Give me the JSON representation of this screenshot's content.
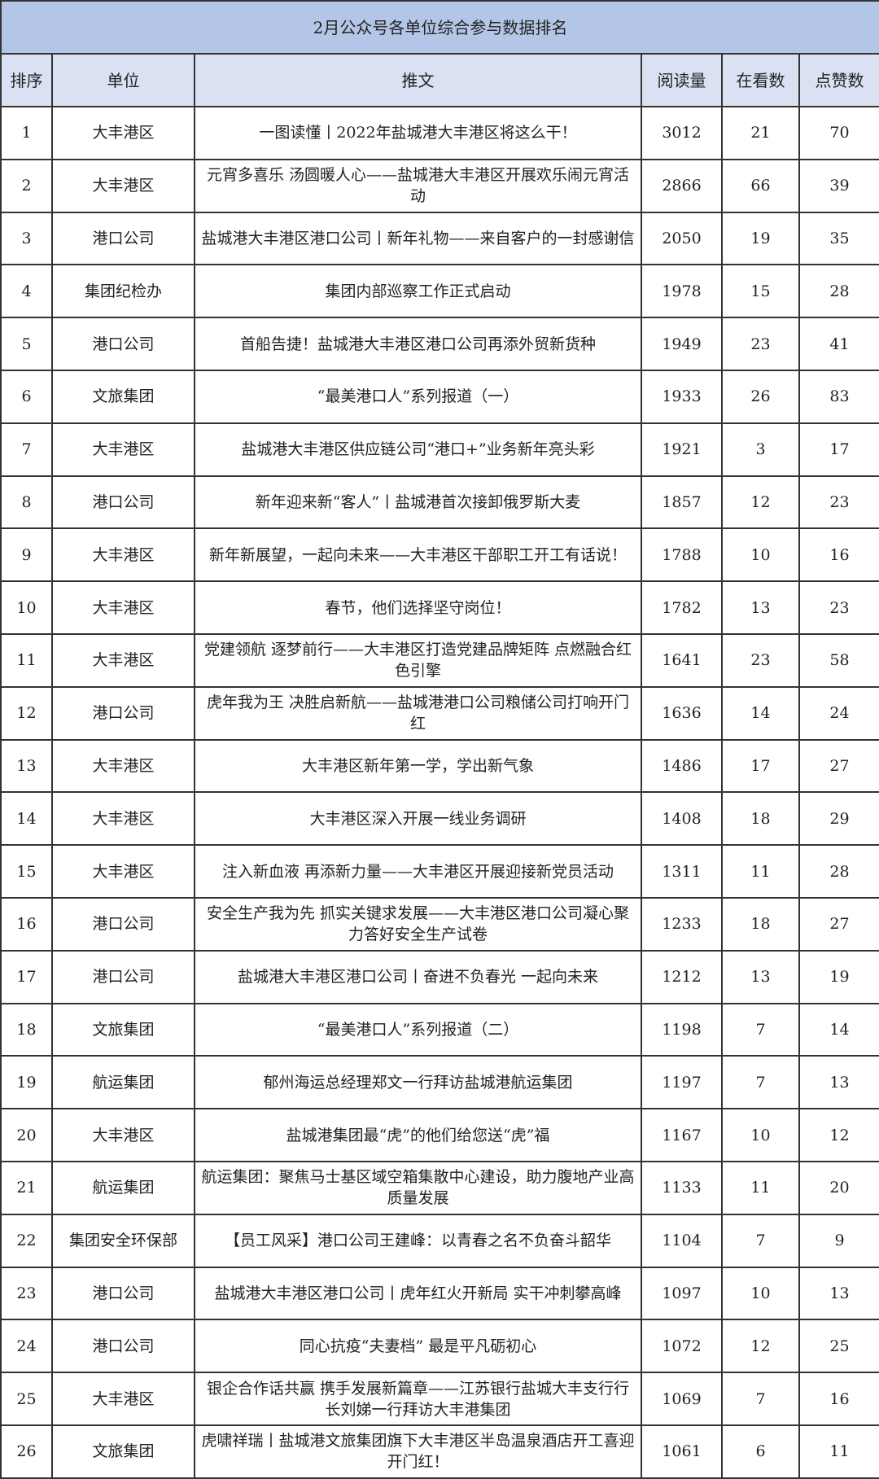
{
  "title": "2月公众号各单位综合参与数据排名",
  "headers": [
    "排序",
    "单位",
    "推文",
    "阅读量",
    "在看数",
    "点赞数"
  ],
  "colors": {
    "title_bg": "#b4c6e7",
    "header_bg": "#d9e1f2"
  },
  "rows": [
    [
      "1",
      "大丰港区",
      "一图读懂丨2022年盐城港大丰港区将这么干！",
      "3012",
      "21",
      "70"
    ],
    [
      "2",
      "大丰港区",
      "元宵多喜乐 汤圆暖人心——盐城港大丰港区开展欢乐闹元宵活动",
      "2866",
      "66",
      "39"
    ],
    [
      "3",
      "港口公司",
      "盐城港大丰港区港口公司丨新年礼物——来自客户的一封感谢信",
      "2050",
      "19",
      "35"
    ],
    [
      "4",
      "集团纪检办",
      "集团内部巡察工作正式启动",
      "1978",
      "15",
      "28"
    ],
    [
      "5",
      "港口公司",
      "首船告捷！盐城港大丰港区港口公司再添外贸新货种",
      "1949",
      "23",
      "41"
    ],
    [
      "6",
      "文旅集团",
      "“最美港口人”系列报道（一）",
      "1933",
      "26",
      "83"
    ],
    [
      "7",
      "大丰港区",
      "盐城港大丰港区供应链公司“港口+”业务新年亮头彩",
      "1921",
      "3",
      "17"
    ],
    [
      "8",
      "港口公司",
      "新年迎来新“客人”丨盐城港首次接卸俄罗斯大麦",
      "1857",
      "12",
      "23"
    ],
    [
      "9",
      "大丰港区",
      "新年新展望，一起向未来——大丰港区干部职工开工有话说！",
      "1788",
      "10",
      "16"
    ],
    [
      "10",
      "大丰港区",
      "春节，他们选择坚守岗位！",
      "1782",
      "13",
      "23"
    ],
    [
      "11",
      "大丰港区",
      "党建领航 逐梦前行——大丰港区打造党建品牌矩阵 点燃融合红色引擎",
      "1641",
      "23",
      "58"
    ],
    [
      "12",
      "港口公司",
      "虎年我为王 决胜启新航——盐城港港口公司粮储公司打响开门红",
      "1636",
      "14",
      "24"
    ],
    [
      "13",
      "大丰港区",
      "大丰港区新年第一学，学出新气象",
      "1486",
      "17",
      "27"
    ],
    [
      "14",
      "大丰港区",
      "大丰港区深入开展一线业务调研",
      "1408",
      "18",
      "29"
    ],
    [
      "15",
      "大丰港区",
      "注入新血液 再添新力量——大丰港区开展迎接新党员活动",
      "1311",
      "11",
      "28"
    ],
    [
      "16",
      "港口公司",
      "安全生产我为先 抓实关键求发展——大丰港区港口公司凝心聚力答好安全生产试卷",
      "1233",
      "18",
      "27"
    ],
    [
      "17",
      "港口公司",
      "盐城港大丰港区港口公司丨奋进不负春光 一起向未来",
      "1212",
      "13",
      "19"
    ],
    [
      "18",
      "文旅集团",
      "“最美港口人”系列报道（二）",
      "1198",
      "7",
      "14"
    ],
    [
      "19",
      "航运集团",
      "郁州海运总经理郑文一行拜访盐城港航运集团",
      "1197",
      "7",
      "13"
    ],
    [
      "20",
      "大丰港区",
      "盐城港集团最“虎”的他们给您送“虎”福",
      "1167",
      "10",
      "12"
    ],
    [
      "21",
      "航运集团",
      "航运集团：聚焦马士基区域空箱集散中心建设，助力腹地产业高质量发展",
      "1133",
      "11",
      "20"
    ],
    [
      "22",
      "集团安全环保部",
      "【员工风采】港口公司王建峰：以青春之名不负奋斗韶华",
      "1104",
      "7",
      "9"
    ],
    [
      "23",
      "港口公司",
      "盐城港大丰港区港口公司丨虎年红火开新局 实干冲刺攀高峰",
      "1097",
      "10",
      "13"
    ],
    [
      "24",
      "港口公司",
      "同心抗疫“夫妻档” 最是平凡砺初心",
      "1072",
      "12",
      "25"
    ],
    [
      "25",
      "大丰港区",
      "银企合作话共赢 携手发展新篇章——江苏银行盐城大丰支行行长刘娣一行拜访大丰港集团",
      "1069",
      "7",
      "16"
    ],
    [
      "26",
      "文旅集团",
      "虎啸祥瑞丨盐城港文旅集团旗下大丰港区半岛温泉酒店开工喜迎开门红！",
      "1061",
      "6",
      "11"
    ]
  ]
}
